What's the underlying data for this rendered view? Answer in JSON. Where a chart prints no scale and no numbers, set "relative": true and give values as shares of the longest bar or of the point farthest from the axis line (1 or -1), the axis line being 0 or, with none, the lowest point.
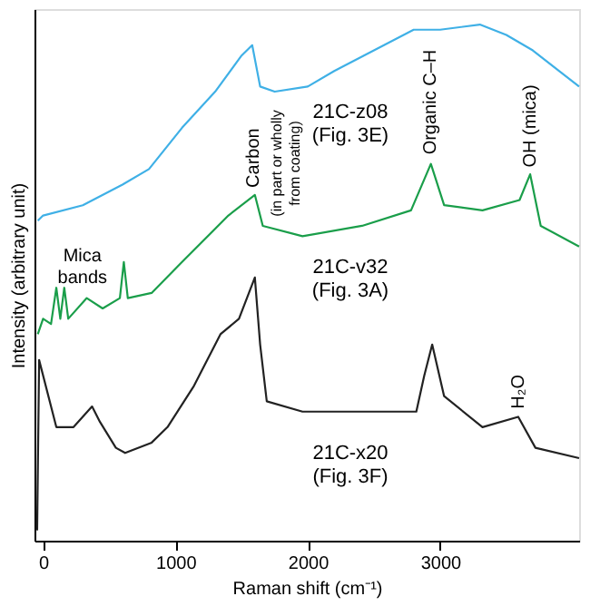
{
  "chart_data": {
    "type": "line",
    "relative": true,
    "xlabel": "Raman shift (cm⁻¹)",
    "ylabel": "Intensity (arbitrary unit)",
    "xlim": [
      -65,
      4050
    ],
    "xticks": [
      0,
      1000,
      2000,
      3000
    ],
    "grid": false,
    "marker": "none",
    "line_style": "solid",
    "series": [
      {
        "name": "21C-z08\n(Fig. 3E)",
        "color": "#3fb0e6",
        "x": [
          -40,
          0,
          300,
          600,
          800,
          1050,
          1300,
          1500,
          1580,
          1640,
          1750,
          2000,
          2200,
          2500,
          2800,
          3000,
          3300,
          3500,
          3700,
          3900,
          4050
        ],
        "values": [
          0.62,
          0.63,
          0.65,
          0.69,
          0.72,
          0.8,
          0.87,
          0.94,
          0.96,
          0.88,
          0.87,
          0.88,
          0.91,
          0.95,
          0.99,
          0.99,
          1.0,
          0.98,
          0.95,
          0.91,
          0.88
        ]
      },
      {
        "name": "21C-v32\n(Fig. 3A)",
        "color": "#1a9e4a",
        "x": [
          -40,
          0,
          60,
          100,
          130,
          160,
          190,
          330,
          450,
          580,
          610,
          640,
          820,
          1050,
          1400,
          1600,
          1660,
          1960,
          2410,
          2780,
          2930,
          3030,
          3320,
          3600,
          3680,
          3760,
          4050
        ],
        "values": [
          0.4,
          0.43,
          0.42,
          0.49,
          0.43,
          0.49,
          0.43,
          0.47,
          0.45,
          0.47,
          0.54,
          0.47,
          0.48,
          0.54,
          0.63,
          0.67,
          0.61,
          0.59,
          0.61,
          0.64,
          0.73,
          0.65,
          0.64,
          0.66,
          0.71,
          0.61,
          0.57
        ]
      },
      {
        "name": "21C-x20\n(Fig. 3F)",
        "color": "#222222",
        "x": [
          -45,
          -30,
          100,
          230,
          370,
          430,
          550,
          620,
          820,
          940,
          1140,
          1340,
          1480,
          1600,
          1640,
          1690,
          1960,
          2820,
          2880,
          2940,
          3030,
          3320,
          3590,
          3720,
          4050
        ],
        "values": [
          0.02,
          0.35,
          0.22,
          0.22,
          0.26,
          0.23,
          0.18,
          0.17,
          0.19,
          0.22,
          0.3,
          0.4,
          0.43,
          0.51,
          0.38,
          0.27,
          0.25,
          0.25,
          0.32,
          0.38,
          0.28,
          0.22,
          0.24,
          0.18,
          0.16
        ]
      }
    ],
    "annotations": [
      "Mica\nbands",
      "Carbon",
      "(in part or wholly\nfrom coating)",
      "Organic C–H",
      "OH (mica)",
      "H₂O"
    ]
  }
}
